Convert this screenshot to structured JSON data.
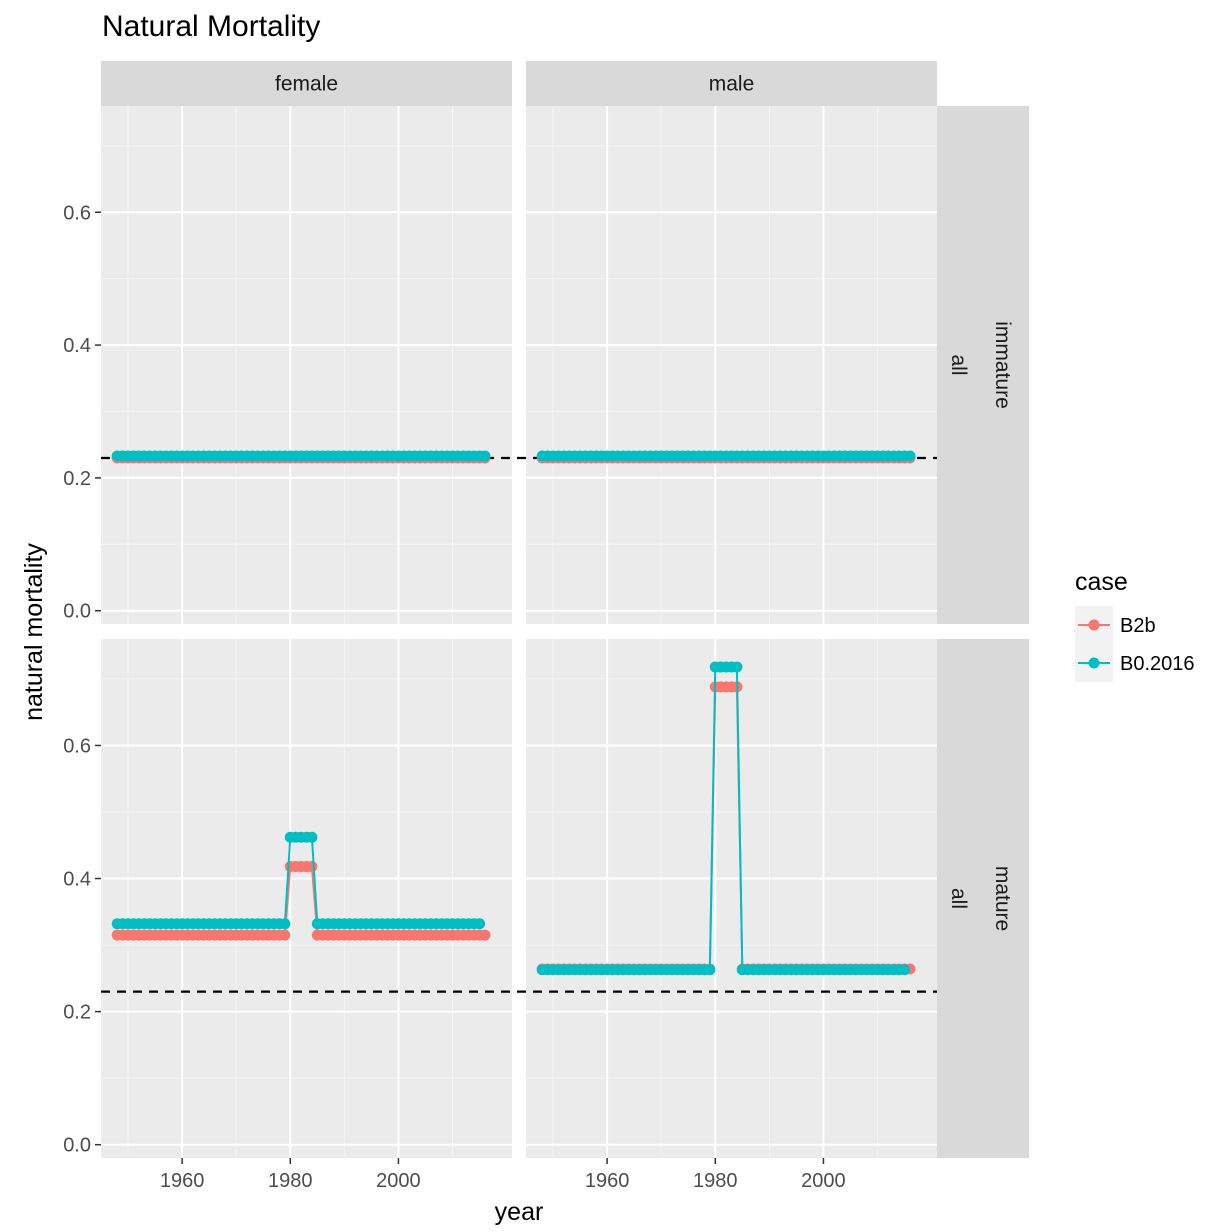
{
  "chart_data": {
    "type": "line",
    "title": "Natural Mortality",
    "xlabel": "year",
    "ylabel": "natural mortality",
    "xlim": [
      1945,
      2021
    ],
    "ylim": [
      -0.02,
      0.76
    ],
    "x_ticks": [
      1960,
      1980,
      2000
    ],
    "y_ticks": [
      0.0,
      0.2,
      0.4,
      0.6
    ],
    "x_tick_labels": [
      "1960",
      "1980",
      "2000"
    ],
    "y_tick_labels": [
      "0.0",
      "0.2",
      "0.4",
      "0.6"
    ],
    "grid": true,
    "reference_line": {
      "y": 0.23,
      "style": "dashed",
      "color": "#000000"
    },
    "legend": {
      "title": "case",
      "position": "right",
      "entries": [
        {
          "name": "B2b",
          "color": "#F8766D"
        },
        {
          "name": "B0.2016",
          "color": "#00BFC4"
        }
      ]
    },
    "col_strips": [
      "female",
      "male"
    ],
    "row_strips": [
      {
        "label1": "immature",
        "label2": "all"
      },
      {
        "label1": "mature",
        "label2": "all"
      }
    ],
    "facets": [
      {
        "sex": "female",
        "maturity": "immature",
        "shell": "all",
        "series": [
          {
            "name": "B2b",
            "segments": [
              {
                "from": 1948,
                "to": 2016,
                "value": 0.23
              }
            ]
          },
          {
            "name": "B0.2016",
            "segments": [
              {
                "from": 1948,
                "to": 2016,
                "value": 0.233
              }
            ]
          }
        ]
      },
      {
        "sex": "male",
        "maturity": "immature",
        "shell": "all",
        "series": [
          {
            "name": "B2b",
            "segments": [
              {
                "from": 1948,
                "to": 2016,
                "value": 0.23
              }
            ]
          },
          {
            "name": "B0.2016",
            "segments": [
              {
                "from": 1948,
                "to": 2016,
                "value": 0.233
              }
            ]
          }
        ]
      },
      {
        "sex": "female",
        "maturity": "mature",
        "shell": "all",
        "series": [
          {
            "name": "B2b",
            "segments": [
              {
                "from": 1948,
                "to": 1979,
                "value": 0.315
              },
              {
                "from": 1980,
                "to": 1984,
                "value": 0.418
              },
              {
                "from": 1985,
                "to": 2016,
                "value": 0.315
              }
            ]
          },
          {
            "name": "B0.2016",
            "segments": [
              {
                "from": 1948,
                "to": 1979,
                "value": 0.332
              },
              {
                "from": 1980,
                "to": 1984,
                "value": 0.462
              },
              {
                "from": 1985,
                "to": 2015,
                "value": 0.332
              }
            ]
          }
        ]
      },
      {
        "sex": "male",
        "maturity": "mature",
        "shell": "all",
        "series": [
          {
            "name": "B2b",
            "segments": [
              {
                "from": 1948,
                "to": 1979,
                "value": 0.264
              },
              {
                "from": 1980,
                "to": 1984,
                "value": 0.688
              },
              {
                "from": 1985,
                "to": 2016,
                "value": 0.264
              }
            ]
          },
          {
            "name": "B0.2016",
            "segments": [
              {
                "from": 1948,
                "to": 1979,
                "value": 0.263
              },
              {
                "from": 1980,
                "to": 1984,
                "value": 0.718
              },
              {
                "from": 1985,
                "to": 2015,
                "value": 0.263
              }
            ]
          }
        ]
      }
    ]
  }
}
